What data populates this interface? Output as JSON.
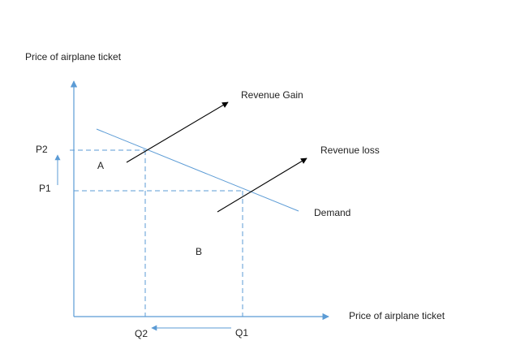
{
  "diagram": {
    "y_axis_label": "Price of airplane ticket",
    "x_axis_label": "Price of airplane ticket",
    "price_labels": {
      "p2": "P2",
      "p1": "P1"
    },
    "quantity_labels": {
      "q2": "Q2",
      "q1": "Q1"
    },
    "area_labels": {
      "a": "A",
      "b": "B"
    },
    "curve_label": "Demand",
    "arrow_labels": {
      "gain": "Revenue Gain",
      "loss": "Revenue loss"
    },
    "colors": {
      "axis": "#5b9bd5",
      "curve": "#5b9bd5",
      "arrow": "#000000",
      "text": "#222222"
    }
  }
}
